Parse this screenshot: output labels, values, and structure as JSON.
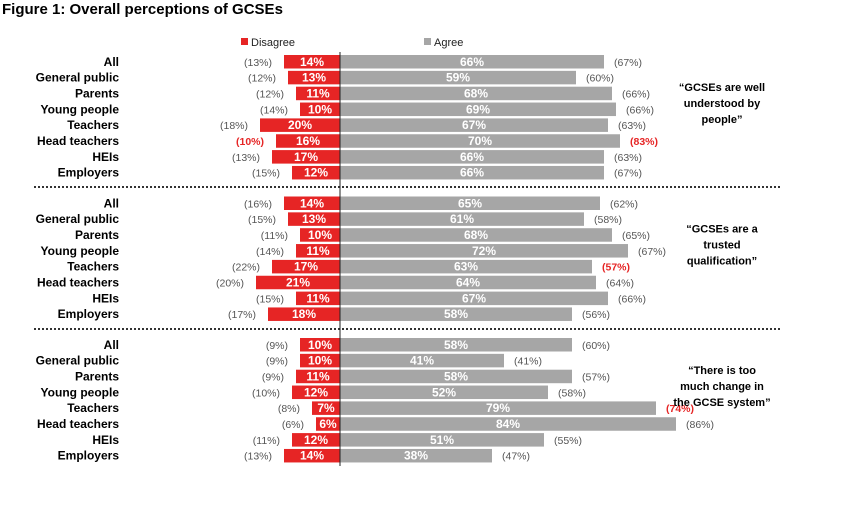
{
  "title": "Figure 1: Overall perceptions of GCSEs",
  "chart_data": {
    "type": "bar",
    "legend": [
      {
        "name": "Disagree",
        "color": "#e62525"
      },
      {
        "name": "Agree",
        "color": "#a6a6a6"
      }
    ],
    "legend_position": "top",
    "categories": [
      "All",
      "General public",
      "Parents",
      "Young people",
      "Teachers",
      "Head teachers",
      "HEIs",
      "Employers"
    ],
    "highlight_color": "#e62525",
    "panels": [
      {
        "statement": "“GCSEs are well understood by people”",
        "statement_lines": [
          "“GCSEs are well",
          "understood by",
          "people”"
        ],
        "disagree": [
          14,
          13,
          11,
          10,
          20,
          16,
          17,
          12
        ],
        "agree": [
          66,
          59,
          68,
          69,
          67,
          70,
          66,
          66
        ],
        "disagree_prev": [
          "(13%)",
          "(12%)",
          "(12%)",
          "(14%)",
          "(18%)",
          "(10%)",
          "(13%)",
          "(15%)"
        ],
        "agree_prev": [
          "(67%)",
          "(60%)",
          "(66%)",
          "(66%)",
          "(63%)",
          "(83%)",
          "(63%)",
          "(67%)"
        ],
        "disagree_prev_highlight": [
          false,
          false,
          false,
          false,
          false,
          true,
          false,
          false
        ],
        "agree_prev_highlight": [
          false,
          false,
          false,
          false,
          false,
          true,
          false,
          false
        ]
      },
      {
        "statement": "“GCSEs are a trusted qualification”",
        "statement_lines": [
          "“GCSEs are a",
          "trusted",
          "qualification”"
        ],
        "disagree": [
          14,
          13,
          10,
          11,
          17,
          21,
          11,
          18
        ],
        "agree": [
          65,
          61,
          68,
          72,
          63,
          64,
          67,
          58
        ],
        "disagree_prev": [
          "(16%)",
          "(15%)",
          "(11%)",
          "(14%)",
          "(22%)",
          "(20%)",
          "(15%)",
          "(17%)"
        ],
        "agree_prev": [
          "(62%)",
          "(58%)",
          "(65%)",
          "(67%)",
          "(57%)",
          "(64%)",
          "(66%)",
          "(56%)"
        ],
        "disagree_prev_highlight": [
          false,
          false,
          false,
          false,
          false,
          false,
          false,
          false
        ],
        "agree_prev_highlight": [
          false,
          false,
          false,
          false,
          true,
          false,
          false,
          false
        ]
      },
      {
        "statement": "“There is too much change in the GCSE system”",
        "statement_lines": [
          "“There is too",
          "much change in",
          "the GCSE system”"
        ],
        "disagree": [
          10,
          10,
          11,
          12,
          7,
          6,
          12,
          14
        ],
        "agree": [
          58,
          41,
          58,
          52,
          79,
          84,
          51,
          38
        ],
        "disagree_prev": [
          "(9%)",
          "(9%)",
          "(9%)",
          "(10%)",
          "(8%)",
          "(6%)",
          "(11%)",
          "(13%)"
        ],
        "agree_prev": [
          "(60%)",
          "(41%)",
          "(57%)",
          "(58%)",
          "(74%)",
          "(86%)",
          "(55%)",
          "(47%)"
        ],
        "disagree_prev_highlight": [
          false,
          false,
          false,
          false,
          false,
          false,
          false,
          false
        ],
        "agree_prev_highlight": [
          false,
          false,
          false,
          false,
          true,
          false,
          false,
          false
        ]
      }
    ]
  }
}
